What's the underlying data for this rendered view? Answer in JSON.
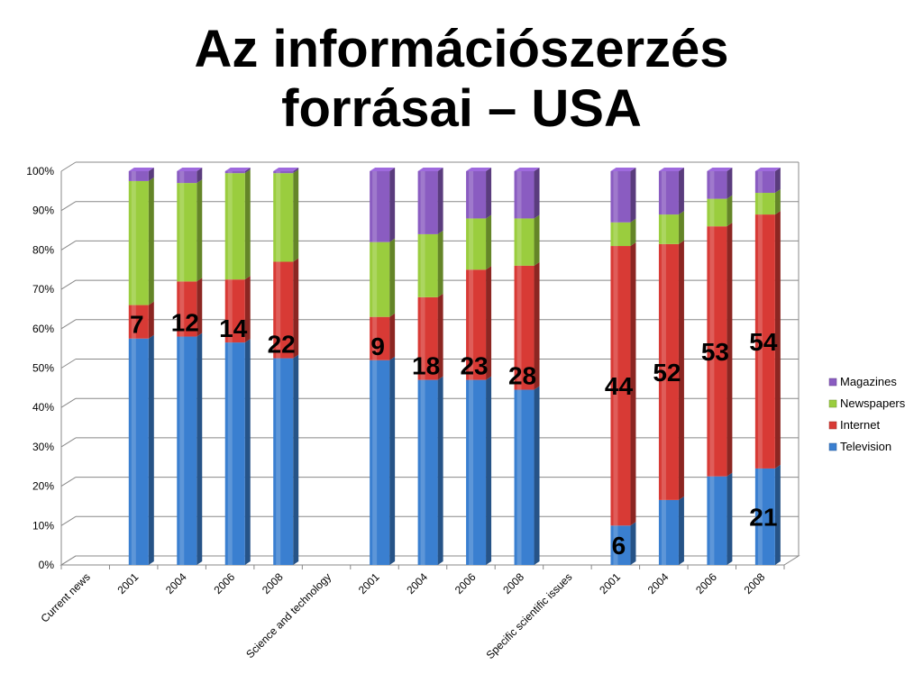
{
  "title_line1": "Az információszerzés",
  "title_line2": "forrásai – USA",
  "colors": {
    "Magazines": "#8a5cc1",
    "Newspapers": "#9acd3e",
    "Internet": "#d83a35",
    "Television": "#3a7fd0"
  },
  "chart_data": {
    "type": "bar",
    "stacked": "percent",
    "categories": [
      "Current news",
      "2001",
      "2004",
      "2006",
      "2008",
      "Science and technology",
      "2001",
      "2004",
      "2006",
      "2008",
      "Specific scientific issues",
      "2001",
      "2004",
      "2006",
      "2008"
    ],
    "ylim": [
      0,
      100
    ],
    "yticks": [
      "0%",
      "10%",
      "20%",
      "30%",
      "40%",
      "50%",
      "60%",
      "70%",
      "80%",
      "90%",
      "100%"
    ],
    "grid": true,
    "legend_position": "right",
    "series": [
      {
        "name": "Television",
        "values": [
          null,
          57.5,
          58,
          56.5,
          52.5,
          null,
          52,
          47,
          47,
          44.5,
          null,
          10,
          16.5,
          22.5,
          24.5
        ]
      },
      {
        "name": "Internet",
        "values": [
          null,
          8.5,
          14,
          16,
          24.5,
          null,
          11,
          21,
          28,
          31.5,
          null,
          71,
          65,
          63.5,
          64.5
        ]
      },
      {
        "name": "Newspapers",
        "values": [
          null,
          31.5,
          25,
          27,
          22.5,
          null,
          19,
          16,
          13,
          12,
          null,
          6,
          7.5,
          7,
          5.5
        ]
      },
      {
        "name": "Magazines",
        "values": [
          null,
          2.5,
          3,
          0.5,
          0.5,
          null,
          18,
          16,
          12,
          12,
          null,
          13,
          11,
          7,
          5.5
        ]
      }
    ],
    "data_labels": [
      {
        "category_index": 1,
        "series": "Internet",
        "text": "7"
      },
      {
        "category_index": 2,
        "series": "Internet",
        "text": "12"
      },
      {
        "category_index": 3,
        "series": "Internet",
        "text": "14"
      },
      {
        "category_index": 4,
        "series": "Internet",
        "text": "22"
      },
      {
        "category_index": 6,
        "series": "Internet",
        "text": "9"
      },
      {
        "category_index": 7,
        "series": "Internet",
        "text": "18"
      },
      {
        "category_index": 8,
        "series": "Internet",
        "text": "23"
      },
      {
        "category_index": 9,
        "series": "Internet",
        "text": "28"
      },
      {
        "category_index": 11,
        "series": "Internet",
        "text": "44"
      },
      {
        "category_index": 12,
        "series": "Internet",
        "text": "52"
      },
      {
        "category_index": 13,
        "series": "Internet",
        "text": "53"
      },
      {
        "category_index": 14,
        "series": "Internet",
        "text": "54"
      },
      {
        "category_index": 11,
        "series": "Television",
        "text": "6"
      },
      {
        "category_index": 14,
        "series": "Television",
        "text": "21"
      }
    ],
    "legend": [
      "Magazines",
      "Newspapers",
      "Internet",
      "Television"
    ]
  }
}
